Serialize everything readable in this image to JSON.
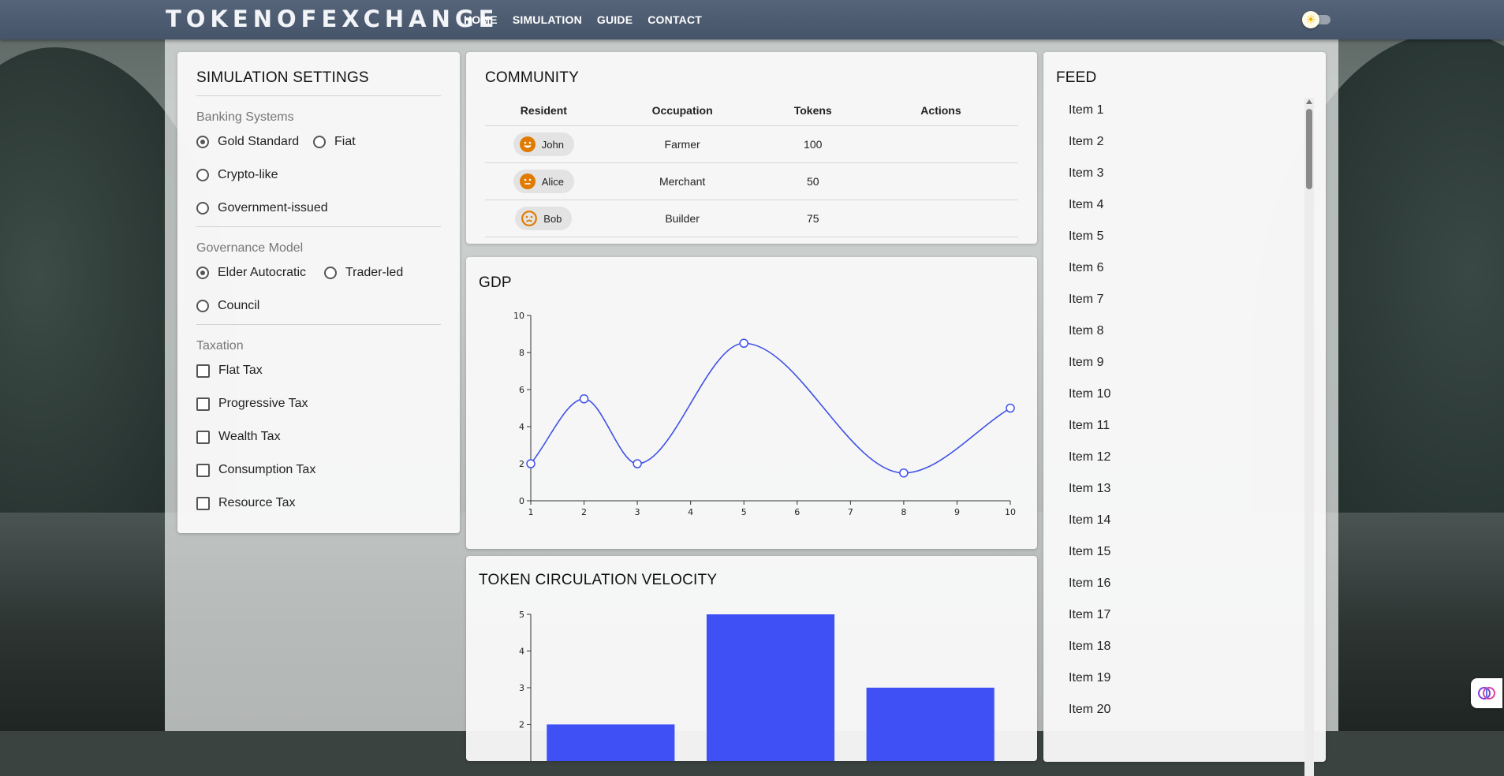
{
  "header": {
    "brand": "TOKENOFEXCHANGE",
    "nav": [
      "HOME",
      "SIMULATION",
      "GUIDE",
      "CONTACT"
    ]
  },
  "settings": {
    "title": "SIMULATION SETTINGS",
    "banking": {
      "title": "Banking Systems",
      "options": [
        "Gold Standard",
        "Fiat",
        "Crypto-like",
        "Government-issued"
      ],
      "selected": "Gold Standard"
    },
    "governance": {
      "title": "Governance Model",
      "options": [
        "Elder Autocratic",
        "Trader-led",
        "Council"
      ],
      "selected": "Elder Autocratic"
    },
    "taxation": {
      "title": "Taxation",
      "options": [
        "Flat Tax",
        "Progressive Tax",
        "Wealth Tax",
        "Consumption Tax",
        "Resource Tax"
      ]
    }
  },
  "community": {
    "title": "COMMUNITY",
    "columns": [
      "Resident",
      "Occupation",
      "Tokens",
      "Actions"
    ],
    "rows": [
      {
        "name": "John",
        "occupation": "Farmer",
        "tokens": "100",
        "mood": "happy"
      },
      {
        "name": "Alice",
        "occupation": "Merchant",
        "tokens": "50",
        "mood": "neutral"
      },
      {
        "name": "Bob",
        "occupation": "Builder",
        "tokens": "75",
        "mood": "sad"
      }
    ]
  },
  "charts": {
    "gdp_title": "GDP",
    "tcv_title": "TOKEN CIRCULATION VELOCITY"
  },
  "chart_data": [
    {
      "type": "line",
      "title": "GDP",
      "x": [
        1,
        2,
        3,
        5,
        8,
        10
      ],
      "y": [
        2,
        5.5,
        2,
        8.5,
        1.5,
        5
      ],
      "xticks": [
        1,
        2,
        3,
        4,
        5,
        6,
        7,
        8,
        9,
        10
      ],
      "yticks": [
        0,
        2,
        4,
        6,
        8,
        10
      ],
      "xlim": [
        1,
        10
      ],
      "ylim": [
        0,
        10
      ],
      "color": "#3f51e6",
      "grid": false
    },
    {
      "type": "bar",
      "title": "TOKEN CIRCULATION VELOCITY",
      "values": [
        2,
        5,
        3
      ],
      "yticks": [
        2,
        3,
        4,
        5
      ],
      "ylim": [
        0,
        5
      ],
      "color": "#3f51f5",
      "grid": false
    }
  ],
  "feed": {
    "title": "FEED",
    "items": [
      "Item 1",
      "Item 2",
      "Item 3",
      "Item 4",
      "Item 5",
      "Item 6",
      "Item 7",
      "Item 8",
      "Item 9",
      "Item 10",
      "Item 11",
      "Item 12",
      "Item 13",
      "Item 14",
      "Item 15",
      "Item 16",
      "Item 17",
      "Item 18",
      "Item 19",
      "Item 20"
    ]
  },
  "colors": {
    "accent": "#3f51e6",
    "appbar": "#4e5c72",
    "face": "#e07b00"
  }
}
